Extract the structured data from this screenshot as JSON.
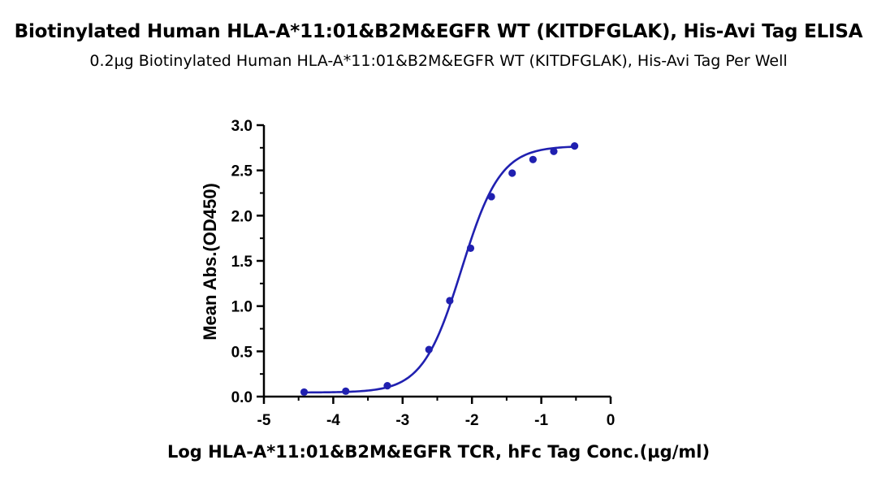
{
  "chart_data": {
    "type": "scatter",
    "title": "Biotinylated Human HLA-A*11:01&B2M&EGFR WT (KITDFGLAK), His-Avi Tag ELISA",
    "subtitle": "0.2µg Biotinylated Human HLA-A*11:01&B2M&EGFR WT (KITDFGLAK), His-Avi Tag Per Well",
    "xlabel": "Log HLA-A*11:01&B2M&EGFR TCR, hFc Tag Conc.(µg/ml)",
    "ylabel": "Mean Abs.(OD450)",
    "xlim": [
      -5,
      0
    ],
    "ylim": [
      0.0,
      3.0
    ],
    "x_ticks": [
      "-5",
      "-4",
      "-3",
      "-2",
      "-1",
      "0"
    ],
    "y_ticks": [
      "0.0",
      "0.5",
      "1.0",
      "1.5",
      "2.0",
      "2.5",
      "3.0"
    ],
    "grid": false,
    "color": "#2020b0",
    "series": [
      {
        "x": [
          -4.42,
          -3.82,
          -3.22,
          -2.62,
          -2.32,
          -2.02,
          -1.72,
          -1.42,
          -1.12,
          -0.82,
          -0.52
        ],
        "y": [
          0.05,
          0.06,
          0.12,
          0.52,
          1.06,
          1.64,
          2.21,
          2.47,
          2.62,
          2.71,
          2.77
        ],
        "fit": "4PL",
        "fit_params": {
          "bottom": 0.045,
          "top": 2.77,
          "logEC50": -2.15,
          "hill": 1.55
        }
      }
    ]
  }
}
